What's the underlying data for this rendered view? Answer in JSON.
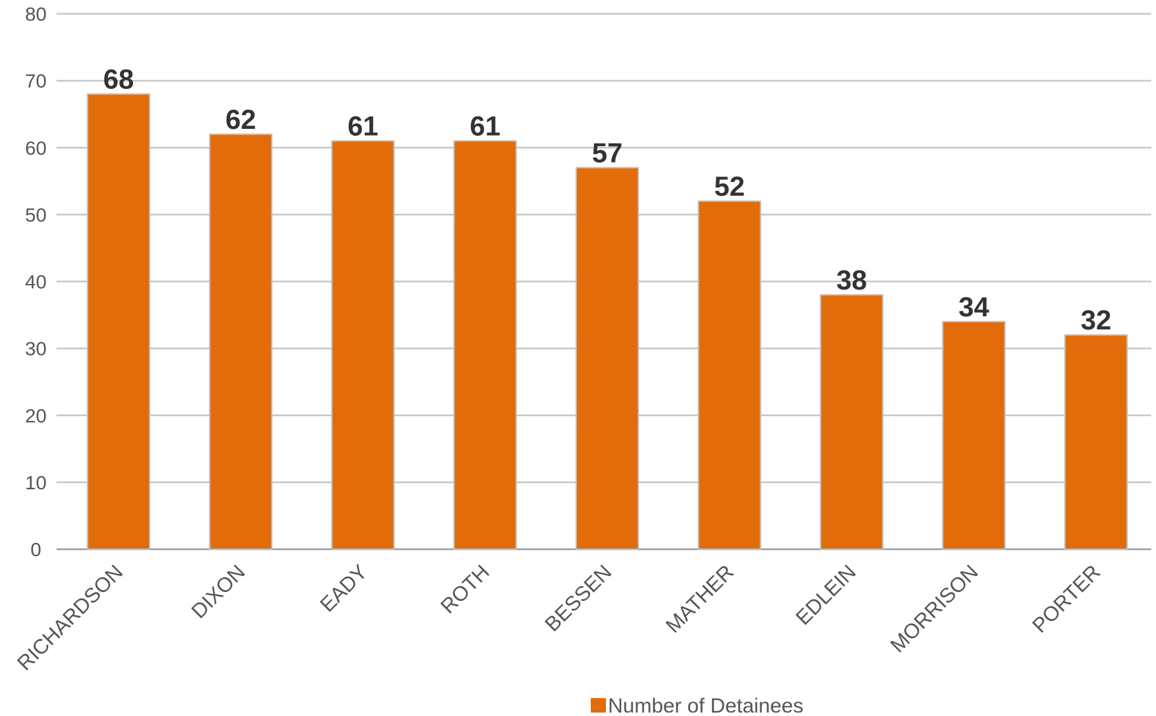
{
  "chart_data": {
    "type": "bar",
    "title": "",
    "xlabel": "",
    "ylabel": "",
    "categories": [
      "RICHARDSON",
      "DIXON",
      "EADY",
      "ROTH",
      "BESSEN",
      "MATHER",
      "EDLEIN",
      "MORRISON",
      "PORTER"
    ],
    "series": [
      {
        "name": "Number of Detainees",
        "values": [
          68,
          62,
          61,
          61,
          57,
          52,
          38,
          34,
          32
        ],
        "color": "#e36c0a"
      }
    ],
    "ylim": [
      0,
      80
    ],
    "yticks": [
      0,
      10,
      20,
      30,
      40,
      50,
      60,
      70,
      80
    ],
    "grid": true,
    "data_labels": true,
    "x_label_rotation": "diagonal",
    "legend": {
      "position": "bottom"
    }
  }
}
